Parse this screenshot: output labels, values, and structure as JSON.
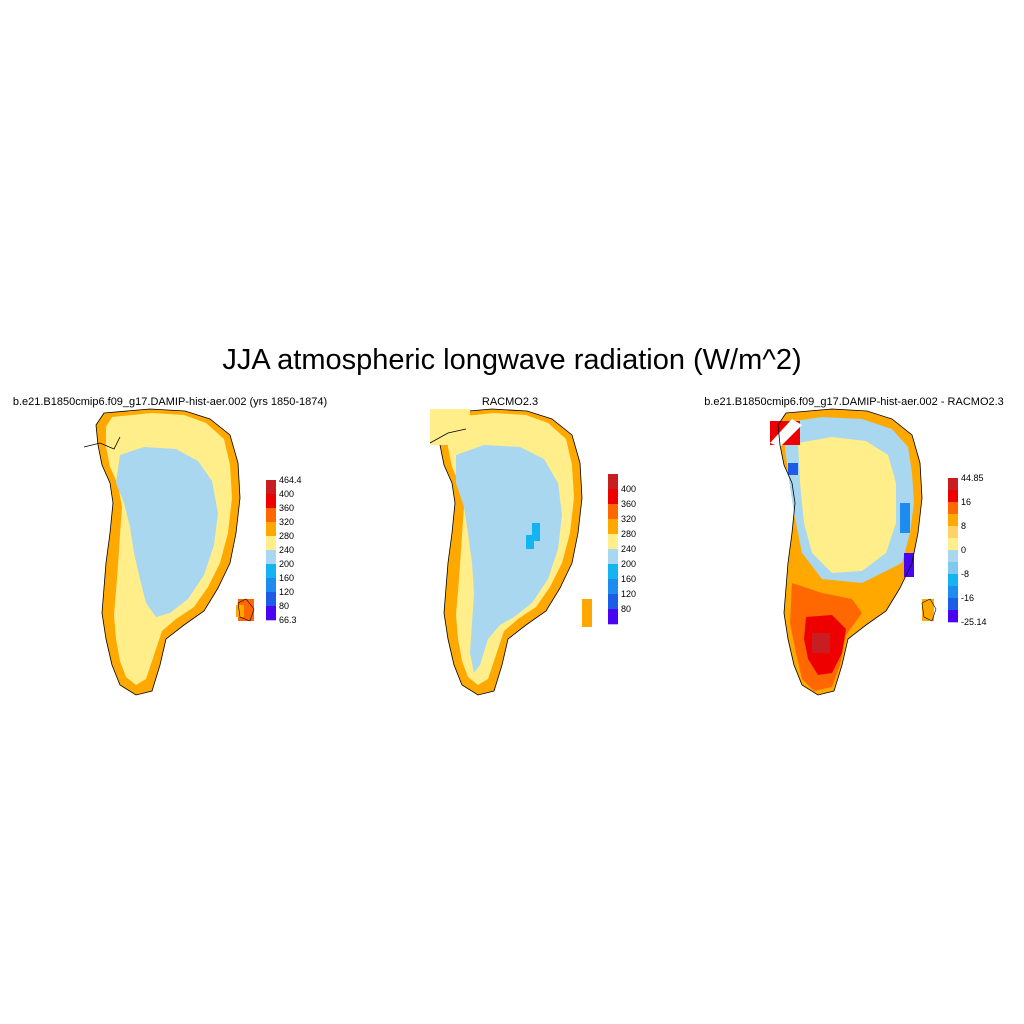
{
  "title": "JJA atmospheric longwave radiation (W/m^2)",
  "panels": [
    {
      "id": "model",
      "title": "b.e21.B1850cmip6.f09_g17.DAMIP-hist-aer.002 (yrs 1850-1874)",
      "colorbar": {
        "colors": [
          "#c91e21",
          "#ef0000",
          "#ff6800",
          "#ffa900",
          "#ffee8a",
          "#a8d7ef",
          "#14b4f0",
          "#1e8cee",
          "#1c5ce6",
          "#4b04f2"
        ],
        "labels": [
          "464.4",
          "400",
          "360",
          "320",
          "280",
          "240",
          "200",
          "160",
          "120",
          "80",
          "66.3"
        ]
      },
      "map_levels": {
        "interior": "240-280",
        "coastal": "280-320",
        "west_edge": "320-360"
      }
    },
    {
      "id": "obs",
      "title": "RACMO2.3",
      "colorbar": {
        "colors": [
          "#c91e21",
          "#ef0000",
          "#ff6800",
          "#ffa900",
          "#ffee8a",
          "#a8d7ef",
          "#14b4f0",
          "#1e8cee",
          "#1c5ce6",
          "#4b04f2"
        ],
        "labels": [
          "400",
          "360",
          "320",
          "280",
          "240",
          "200",
          "160",
          "120",
          "80"
        ]
      },
      "map_levels": {
        "interior": "240-280",
        "coastal": "280-320",
        "west_edge": "320-360"
      }
    },
    {
      "id": "diff",
      "title": "b.e21.B1850cmip6.f09_g17.DAMIP-hist-aer.002 - RACMO2.3",
      "colorbar": {
        "colors": [
          "#c91e21",
          "#ef0000",
          "#ff6800",
          "#ffa900",
          "#ffd36a",
          "#ffee8a",
          "#a8d7ef",
          "#7fc8f0",
          "#14b4f0",
          "#1e8cee",
          "#1c5ce6",
          "#4b04f2"
        ],
        "labels": [
          "44.85",
          "16",
          "8",
          "0",
          "-8",
          "-16",
          "-25.14"
        ]
      },
      "map_levels": {
        "interior": "0-8",
        "south_west": "16-44.85",
        "east_coast": "-25.14-0"
      }
    }
  ]
}
